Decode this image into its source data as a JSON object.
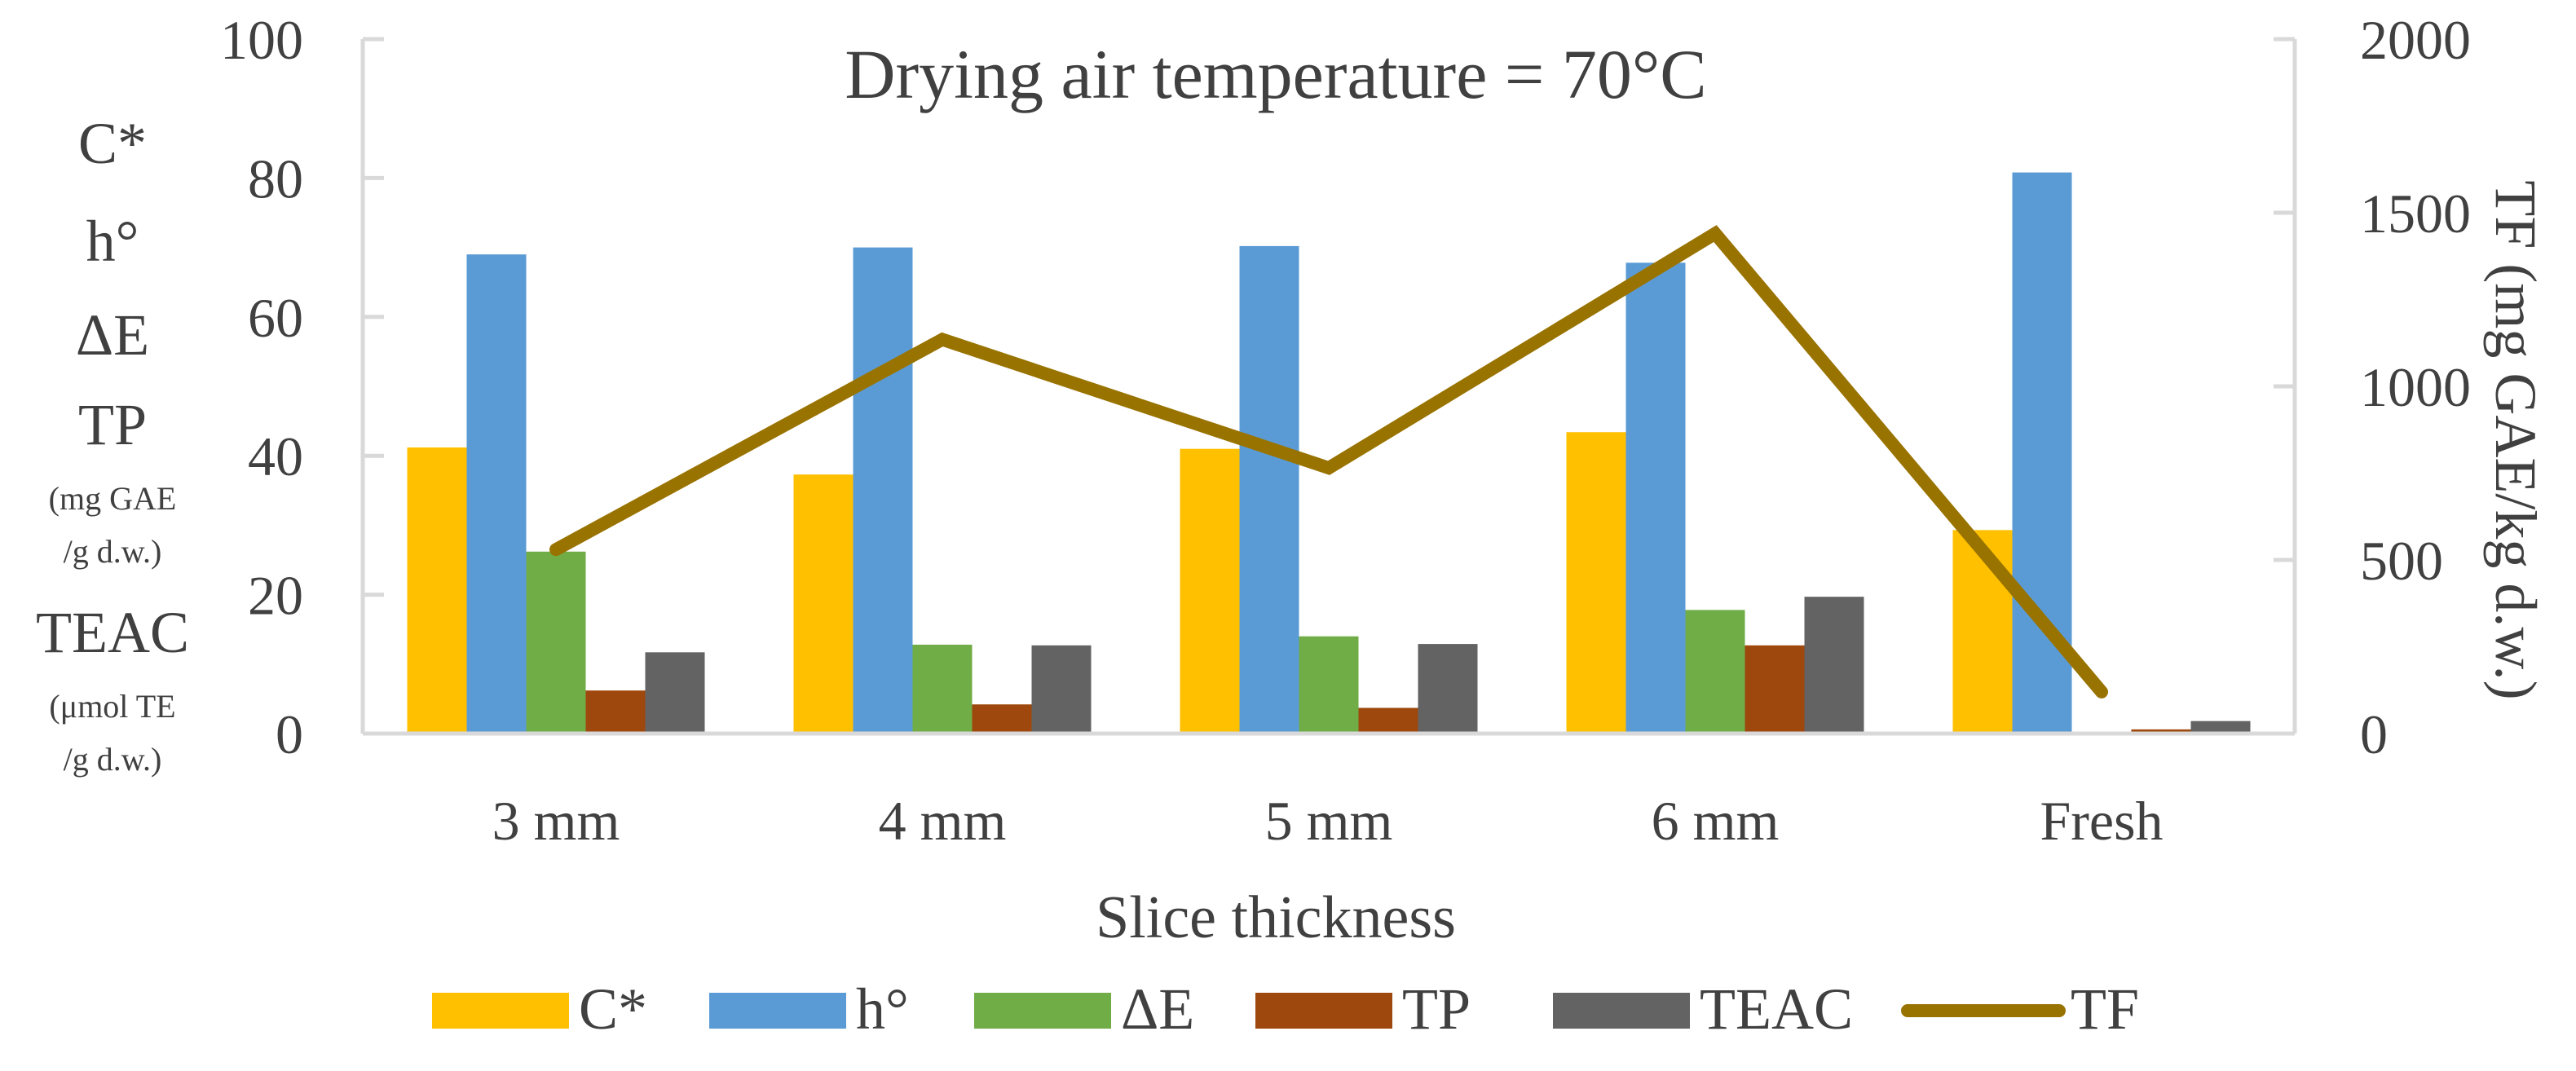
{
  "chart_data": {
    "type": "bar",
    "title": "Drying air temperature = 70°C",
    "xlabel": "Slice thickness",
    "categories": [
      "3 mm",
      "4 mm",
      "5 mm",
      "6 mm",
      "Fresh"
    ],
    "y_left": {
      "ylim": [
        0,
        100
      ],
      "ticks": [
        "0",
        "20",
        "40",
        "60",
        "80",
        "100"
      ],
      "label_lines": [
        {
          "text": "C*",
          "size": "big"
        },
        {
          "text": "h°",
          "size": "big"
        },
        {
          "text": "ΔE",
          "size": "big"
        },
        {
          "text": "TP",
          "size": "big"
        },
        {
          "text": "(mg GAE",
          "size": "small"
        },
        {
          "text": "/g d.w.)",
          "size": "small"
        },
        {
          "text": "TEAC",
          "size": "big"
        },
        {
          "text": "(μmol TE",
          "size": "small"
        },
        {
          "text": "/g d.w.)",
          "size": "small"
        }
      ]
    },
    "y_right": {
      "ylim": [
        0,
        2000
      ],
      "ticks": [
        "0",
        "500",
        "1000",
        "1500",
        "2000"
      ],
      "label": "TF (mg GAE/kg d.w.)"
    },
    "series": [
      {
        "name": "C*",
        "type": "bar",
        "axis": "left",
        "color": "#FFC000",
        "values": [
          41.2,
          37.3,
          41.0,
          43.4,
          29.3
        ]
      },
      {
        "name": "h°",
        "type": "bar",
        "axis": "left",
        "color": "#5B9BD5",
        "values": [
          69.0,
          70.0,
          70.2,
          67.8,
          80.8
        ]
      },
      {
        "name": "ΔE",
        "type": "bar",
        "axis": "left",
        "color": "#70AD47",
        "values": [
          26.2,
          12.8,
          14.0,
          17.8,
          0
        ]
      },
      {
        "name": "TP",
        "type": "bar",
        "axis": "left",
        "color": "#9E480E",
        "values": [
          6.2,
          4.2,
          3.7,
          12.7,
          0.6
        ]
      },
      {
        "name": "TEAC",
        "type": "bar",
        "axis": "left",
        "color": "#636363",
        "values": [
          11.7,
          12.7,
          12.9,
          19.7,
          1.8
        ]
      },
      {
        "name": "TF",
        "type": "line",
        "axis": "right",
        "color": "#997300",
        "values": [
          530,
          1135,
          765,
          1440,
          120
        ]
      }
    ],
    "legend": [
      "C*",
      "h°",
      "ΔE",
      "TP",
      "TEAC",
      "TF"
    ],
    "legend_position": "bottom"
  }
}
